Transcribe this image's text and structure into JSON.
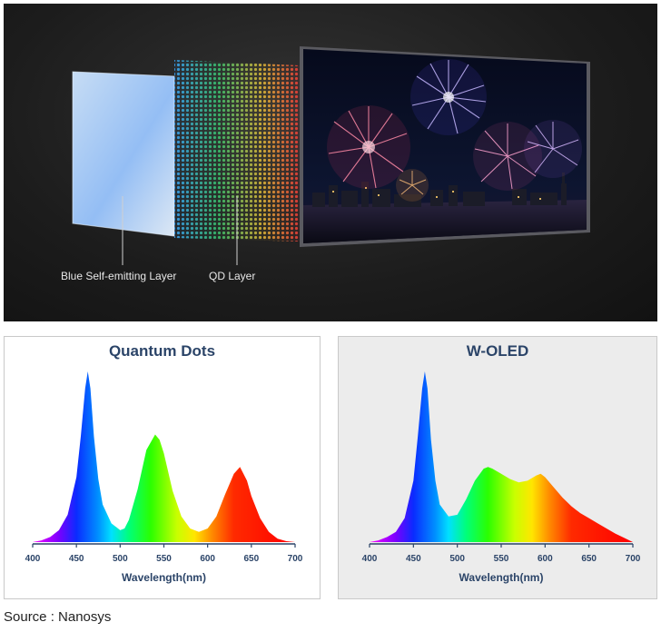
{
  "hero": {
    "blue_layer_label": "Blue Self-emitting Layer",
    "qd_layer_label": "QD Layer"
  },
  "chart_data": [
    {
      "type": "area",
      "title": "Quantum Dots",
      "xlabel": "Wavelength(nm)",
      "ylabel": "",
      "xlim": [
        400,
        700
      ],
      "ylim": [
        0,
        1
      ],
      "x_ticks": [
        400,
        450,
        500,
        550,
        600,
        650,
        700
      ],
      "gradient_fill": true,
      "x": [
        400,
        410,
        420,
        430,
        440,
        450,
        455,
        460,
        463,
        466,
        470,
        475,
        480,
        490,
        500,
        505,
        510,
        520,
        530,
        540,
        545,
        550,
        560,
        570,
        580,
        590,
        600,
        610,
        620,
        630,
        637,
        645,
        650,
        660,
        670,
        680,
        690,
        700
      ],
      "y": [
        0.0,
        0.01,
        0.03,
        0.07,
        0.16,
        0.38,
        0.62,
        0.9,
        1.0,
        0.9,
        0.62,
        0.37,
        0.22,
        0.11,
        0.07,
        0.08,
        0.13,
        0.31,
        0.54,
        0.63,
        0.6,
        0.52,
        0.3,
        0.15,
        0.08,
        0.06,
        0.08,
        0.15,
        0.28,
        0.4,
        0.44,
        0.36,
        0.27,
        0.14,
        0.06,
        0.02,
        0.005,
        0.0
      ]
    },
    {
      "type": "area",
      "title": "W-OLED",
      "xlabel": "Wavelength(nm)",
      "ylabel": "",
      "xlim": [
        400,
        700
      ],
      "ylim": [
        0,
        1
      ],
      "x_ticks": [
        400,
        450,
        500,
        550,
        600,
        650,
        700
      ],
      "gradient_fill": true,
      "x": [
        400,
        410,
        420,
        430,
        440,
        450,
        455,
        460,
        463,
        466,
        470,
        475,
        480,
        490,
        500,
        510,
        520,
        530,
        535,
        540,
        550,
        560,
        570,
        580,
        590,
        595,
        600,
        610,
        620,
        630,
        640,
        650,
        660,
        670,
        680,
        690,
        700
      ],
      "y": [
        0.0,
        0.01,
        0.03,
        0.06,
        0.14,
        0.36,
        0.62,
        0.9,
        1.0,
        0.9,
        0.6,
        0.36,
        0.22,
        0.15,
        0.16,
        0.25,
        0.36,
        0.43,
        0.44,
        0.43,
        0.4,
        0.37,
        0.35,
        0.36,
        0.39,
        0.4,
        0.38,
        0.32,
        0.26,
        0.21,
        0.17,
        0.14,
        0.11,
        0.08,
        0.05,
        0.025,
        0.0
      ]
    }
  ],
  "source": "Source : Nanosys"
}
